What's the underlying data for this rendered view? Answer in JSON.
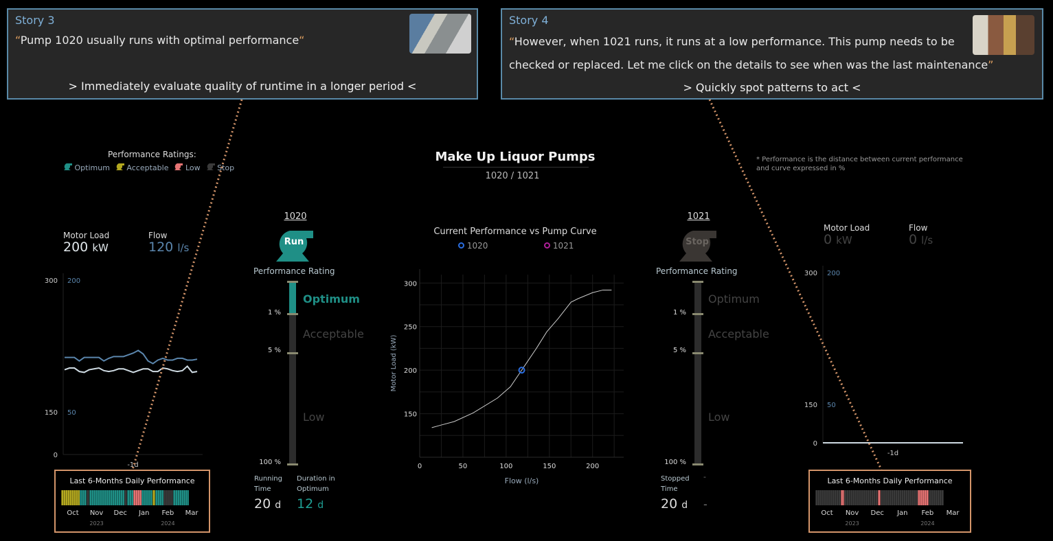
{
  "colors": {
    "optimum": "#1f8f86",
    "acceptable": "#b3a81f",
    "low": "#e57373",
    "stop": "#3a3a3a",
    "flow": "#5b86ad",
    "load": "#cfdbe3",
    "story_border": "#5a8aa8",
    "callout": "#d4956a"
  },
  "story3": {
    "title": "Story 3",
    "quote": "Pump 1020 usually runs with optimal performance",
    "subtitle": "> Immediately evaluate quality of runtime  in a longer period <",
    "photo": "engineer-photo"
  },
  "story4": {
    "title": "Story 4",
    "quote_line1": "However, when 1021 runs, it runs at a low performance.  This pump needs to be",
    "quote_line2": "checked or replaced. Let me click on the details to see when was the last maintenance",
    "subtitle": ">  Quickly spot patterns to act <",
    "photo": "workers-photo"
  },
  "header": {
    "title": "Make Up Liquor Pumps",
    "subtitle": "1020 / 1021",
    "note_line1": "* Performance is the distance between current performance",
    "note_line2": "and curve expressed in %"
  },
  "legend": {
    "title": "Performance Ratings:",
    "items": [
      {
        "label": "Optimum",
        "rating": "optimum"
      },
      {
        "label": "Acceptable",
        "rating": "acceptable"
      },
      {
        "label": "Low",
        "rating": "low"
      },
      {
        "label": "Stop",
        "rating": "stop"
      }
    ]
  },
  "pump1020": {
    "id": "1020",
    "state": "Run",
    "motor_load_label": "Motor Load",
    "motor_load": "200",
    "motor_unit": "kW",
    "flow_label": "Flow",
    "flow": "120",
    "flow_unit": "l/s",
    "rating_title": "Performance Rating",
    "rating": "optimum",
    "levels": [
      "Optimum",
      "Acceptable",
      "Low"
    ],
    "ticks": [
      "1 %",
      "5 %",
      "100 %"
    ],
    "stat1_label1": "Running",
    "stat1_label2": "Time",
    "stat1_value": "20",
    "stat1_unit": "d",
    "stat2_label1": "Duration in",
    "stat2_label2": "Optimum",
    "stat2_value": "12",
    "stat2_unit": "d",
    "trend": {
      "left_ticks": [
        "300",
        "150",
        "0"
      ],
      "right_ticks": [
        "200",
        "50"
      ],
      "x_label": "-1d",
      "load": [
        198,
        200,
        200,
        196,
        195,
        198,
        199,
        200,
        197,
        196,
        197,
        199,
        199,
        197,
        195,
        197,
        199,
        199,
        196,
        196,
        200,
        199,
        197,
        196,
        197,
        202,
        195,
        196
      ],
      "flow": [
        112,
        112,
        112,
        108,
        112,
        112,
        112,
        112,
        108,
        111,
        113,
        113,
        113,
        115,
        117,
        120,
        116,
        108,
        105,
        109,
        111,
        109,
        109,
        111,
        111,
        109,
        109,
        110
      ]
    },
    "timeline": {
      "title": "Last 6-Months Daily Performance",
      "months": [
        "Oct",
        "Nov",
        "Dec",
        "Jan",
        "Feb",
        "Mar"
      ],
      "years": [
        "2023",
        "2024"
      ],
      "segments": [
        {
          "r": "acceptable",
          "d": 26
        },
        {
          "r": "optimum",
          "d": 10
        },
        {
          "r": "stop",
          "d": 4
        },
        {
          "r": "optimum",
          "d": 50
        },
        {
          "r": "stop",
          "d": 4
        },
        {
          "r": "optimum",
          "d": 9
        },
        {
          "r": "low",
          "d": 12
        },
        {
          "r": "optimum",
          "d": 15
        },
        {
          "r": "acceptable",
          "d": 4
        },
        {
          "r": "optimum",
          "d": 12
        },
        {
          "r": "stop",
          "d": 14
        },
        {
          "r": "optimum",
          "d": 22
        }
      ]
    }
  },
  "pump1021": {
    "id": "1021",
    "state": "Stop",
    "motor_load_label": "Motor Load",
    "motor_load": "0",
    "motor_unit": "kW",
    "flow_label": "Flow",
    "flow": "0",
    "flow_unit": "l/s",
    "rating_title": "Performance Rating",
    "rating": "stop",
    "levels": [
      "Optimum",
      "Acceptable",
      "Low"
    ],
    "ticks": [
      "1 %",
      "5 %",
      "100 %"
    ],
    "stat1_label1": "Stopped",
    "stat1_label2": "Time",
    "stat1_value": "20",
    "stat1_unit": "d",
    "stat2_label1": "-",
    "stat2_value": "-",
    "trend": {
      "left_ticks": [
        "300",
        "150",
        "0"
      ],
      "right_ticks": [
        "200",
        "50"
      ],
      "x_label": "-1d"
    },
    "timeline": {
      "title": "Last 6-Months Daily Performance",
      "months": [
        "Oct",
        "Nov",
        "Dec",
        "Jan",
        "Feb",
        "Mar"
      ],
      "years": [
        "2023",
        "2024"
      ],
      "segments": [
        {
          "r": "stop",
          "d": 37
        },
        {
          "r": "low",
          "d": 5
        },
        {
          "r": "stop",
          "d": 49
        },
        {
          "r": "low",
          "d": 4
        },
        {
          "r": "stop",
          "d": 54
        },
        {
          "r": "low",
          "d": 16
        },
        {
          "r": "stop",
          "d": 22
        }
      ]
    }
  },
  "chart_data": {
    "type": "line",
    "title": "Current Performance vs Pump Curve",
    "xlabel": "Flow (l/s)",
    "ylabel": "Motor Load (kW)",
    "xlim": [
      0,
      236
    ],
    "ylim": [
      100,
      316
    ],
    "xticks": [
      0,
      50,
      100,
      150,
      200
    ],
    "yticks": [
      150,
      200,
      250,
      300
    ],
    "grid": true,
    "legend": "top",
    "curve": {
      "x": [
        14,
        25,
        40,
        62,
        90,
        105,
        118,
        135,
        147,
        160,
        175,
        183,
        200,
        212,
        222
      ],
      "y": [
        134,
        137,
        141,
        151,
        168,
        181,
        200,
        225,
        244,
        259,
        278,
        282,
        289,
        292,
        292
      ]
    },
    "series": [
      {
        "name": "1020",
        "x": [
          118
        ],
        "y": [
          200
        ],
        "color": "#2a6de0"
      },
      {
        "name": "1021",
        "x": [],
        "y": [],
        "color": "#b0209a"
      }
    ]
  }
}
